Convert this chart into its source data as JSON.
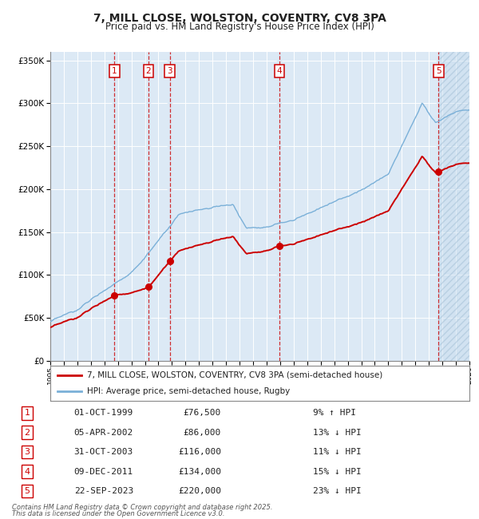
{
  "title_line1": "7, MILL CLOSE, WOLSTON, COVENTRY, CV8 3PA",
  "title_line2": "Price paid vs. HM Land Registry's House Price Index (HPI)",
  "legend_red": "7, MILL CLOSE, WOLSTON, COVENTRY, CV8 3PA (semi-detached house)",
  "legend_blue": "HPI: Average price, semi-detached house, Rugby",
  "footer_line1": "Contains HM Land Registry data © Crown copyright and database right 2025.",
  "footer_line2": "This data is licensed under the Open Government Licence v3.0.",
  "sale_dates_num": [
    1999.75,
    2002.26,
    2003.83,
    2011.94,
    2023.72
  ],
  "sale_prices": [
    76500,
    86000,
    116000,
    134000,
    220000
  ],
  "sale_labels": [
    "1",
    "2",
    "3",
    "4",
    "5"
  ],
  "table_rows": [
    [
      "1",
      "01-OCT-1999",
      "£76,500",
      "9% ↑ HPI"
    ],
    [
      "2",
      "05-APR-2002",
      "£86,000",
      "13% ↓ HPI"
    ],
    [
      "3",
      "31-OCT-2003",
      "£116,000",
      "11% ↓ HPI"
    ],
    [
      "4",
      "09-DEC-2011",
      "£134,000",
      "15% ↓ HPI"
    ],
    [
      "5",
      "22-SEP-2023",
      "£220,000",
      "23% ↓ HPI"
    ]
  ],
  "ylim": [
    0,
    360000
  ],
  "xlim_start": 1995.0,
  "xlim_end": 2026.0,
  "background_color": "#ffffff",
  "plot_bg_color": "#dce9f5",
  "grid_color": "#ffffff",
  "red_color": "#cc0000",
  "blue_color": "#7ab0d8",
  "hatch_bg_color": "#c8ddef"
}
